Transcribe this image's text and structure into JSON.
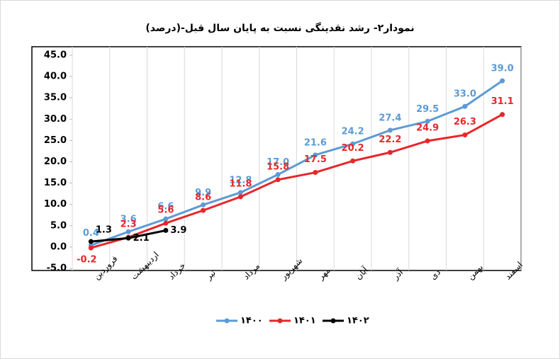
{
  "chart_data": {
    "type": "line",
    "title": "نمودار۲- رشد نقدینگی نسبت به پایان سال قبل-(درصد)",
    "categories": [
      "فروردین",
      "اردیبهشت",
      "خرداد",
      "تیر",
      "مرداد",
      "شهریور",
      "مهر",
      "آبان",
      "آذر",
      "دی",
      "بهمن",
      "اسفند"
    ],
    "series": [
      {
        "name": "۱۴۰۰",
        "color": "#5b9bd5",
        "values": [
          0.4,
          3.6,
          6.6,
          9.9,
          12.8,
          17.0,
          21.6,
          24.2,
          27.4,
          29.5,
          33.0,
          39.0
        ],
        "value_labels": [
          "0.4",
          "3.6",
          "6.6",
          "9.9",
          "12.8",
          "17.0",
          "21.6",
          "24.2",
          "27.4",
          "29.5",
          "33.0",
          "39.0"
        ]
      },
      {
        "name": "۱۴۰۱",
        "color": "#e8262a",
        "values": [
          -0.2,
          2.3,
          5.6,
          8.6,
          11.8,
          15.8,
          17.5,
          20.2,
          22.2,
          24.9,
          26.3,
          31.1
        ],
        "value_labels": [
          "-0.2",
          "2.3",
          "5.6",
          "8.6",
          "11.8",
          "15.8",
          "17.5",
          "20.2",
          "22.2",
          "24.9",
          "26.3",
          "31.1"
        ]
      },
      {
        "name": "۱۴۰۲",
        "color": "#000000",
        "values": [
          1.3,
          2.1,
          3.9,
          null,
          null,
          null,
          null,
          null,
          null,
          null,
          null,
          null
        ],
        "value_labels": [
          "1.3",
          "2.1",
          "3.9",
          null,
          null,
          null,
          null,
          null,
          null,
          null,
          null,
          null
        ]
      }
    ],
    "ylim": [
      -5,
      45
    ],
    "yticks": [
      {
        "value": -5,
        "label": "-5.0"
      },
      {
        "value": 0,
        "label": "0.0"
      },
      {
        "value": 5,
        "label": "5.0"
      },
      {
        "value": 10,
        "label": "10.0"
      },
      {
        "value": 15,
        "label": "15.0"
      },
      {
        "value": 20,
        "label": "20.0"
      },
      {
        "value": 25,
        "label": "25.0"
      },
      {
        "value": 30,
        "label": "30.0"
      },
      {
        "value": 35,
        "label": "35.0"
      },
      {
        "value": 40,
        "label": "40.0"
      },
      {
        "value": 45,
        "label": "45.0"
      }
    ],
    "legend": "bottom"
  }
}
